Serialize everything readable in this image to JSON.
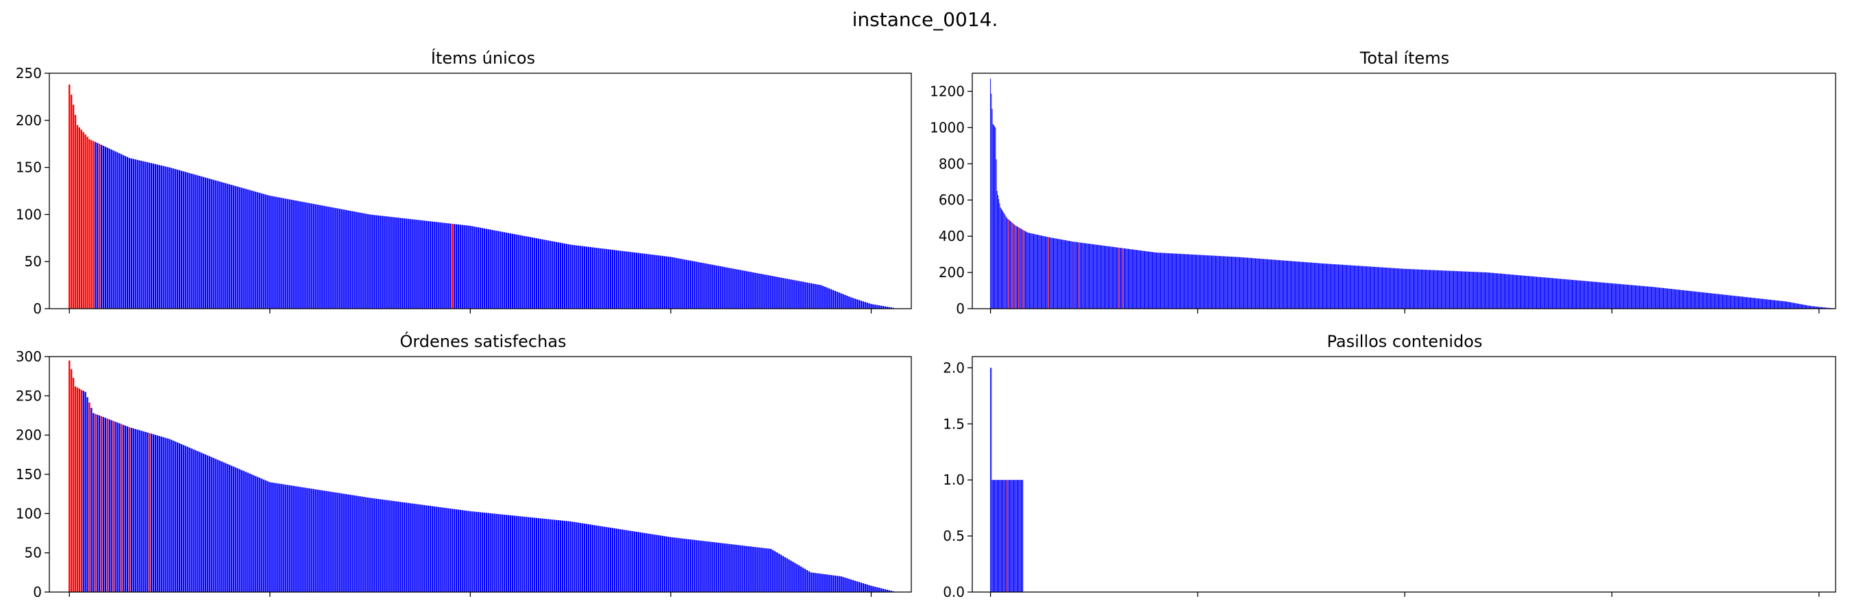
{
  "figure": {
    "suptitle": "instance_0014."
  },
  "chart_data": [
    {
      "type": "bar",
      "title": "Ítems únicos",
      "ylim": [
        0,
        250
      ],
      "yticks": [
        0,
        50,
        100,
        150,
        200,
        250
      ],
      "xlim": [
        -10,
        420
      ],
      "xticks": [
        0,
        100,
        200,
        300,
        400
      ],
      "n": 412,
      "profile": [
        [
          0,
          238
        ],
        [
          4,
          195
        ],
        [
          10,
          180
        ],
        [
          15,
          175
        ],
        [
          20,
          170
        ],
        [
          25,
          165
        ],
        [
          30,
          160
        ],
        [
          50,
          150
        ],
        [
          100,
          120
        ],
        [
          150,
          100
        ],
        [
          200,
          88
        ],
        [
          250,
          68
        ],
        [
          300,
          55
        ],
        [
          350,
          35
        ],
        [
          375,
          25
        ],
        [
          390,
          12
        ],
        [
          400,
          5
        ],
        [
          411,
          1
        ]
      ],
      "highlight": [
        0,
        1,
        2,
        3,
        4,
        5,
        6,
        7,
        8,
        9,
        10,
        11,
        12,
        15,
        191
      ],
      "colors": {
        "default": "#0000ff",
        "highlight": "#ff0000"
      }
    },
    {
      "type": "bar",
      "title": "Total ítems",
      "ylim": [
        0,
        1300
      ],
      "yticks": [
        0,
        200,
        400,
        600,
        800,
        1000,
        1200
      ],
      "xlim": [
        -22,
        1020
      ],
      "xticks": [
        0,
        250,
        500,
        750,
        1000
      ],
      "n": 1020,
      "profile": [
        [
          0,
          1270
        ],
        [
          3,
          1020
        ],
        [
          6,
          1000
        ],
        [
          8,
          650
        ],
        [
          12,
          560
        ],
        [
          20,
          500
        ],
        [
          30,
          460
        ],
        [
          45,
          420
        ],
        [
          70,
          395
        ],
        [
          100,
          370
        ],
        [
          150,
          340
        ],
        [
          200,
          310
        ],
        [
          300,
          285
        ],
        [
          400,
          250
        ],
        [
          500,
          220
        ],
        [
          600,
          200
        ],
        [
          700,
          160
        ],
        [
          800,
          120
        ],
        [
          900,
          70
        ],
        [
          960,
          40
        ],
        [
          990,
          15
        ],
        [
          1010,
          5
        ],
        [
          1019,
          2
        ]
      ],
      "highlight": [
        18,
        22,
        26,
        28,
        30,
        34,
        38,
        40,
        70,
        100,
        107,
        155,
        160
      ],
      "colors": {
        "default": "#0000ff",
        "highlight": "#ff0000"
      }
    },
    {
      "type": "bar",
      "title": "Órdenes satisfechas",
      "ylim": [
        0,
        300
      ],
      "yticks": [
        0,
        50,
        100,
        150,
        200,
        250,
        300
      ],
      "xlim": [
        -10,
        420
      ],
      "xticks": [
        0,
        100,
        200,
        300,
        400
      ],
      "n": 412,
      "profile": [
        [
          0,
          295
        ],
        [
          3,
          262
        ],
        [
          8,
          255
        ],
        [
          12,
          228
        ],
        [
          20,
          220
        ],
        [
          30,
          210
        ],
        [
          50,
          195
        ],
        [
          100,
          140
        ],
        [
          150,
          120
        ],
        [
          200,
          103
        ],
        [
          250,
          90
        ],
        [
          300,
          70
        ],
        [
          350,
          55
        ],
        [
          370,
          25
        ],
        [
          385,
          20
        ],
        [
          400,
          8
        ],
        [
          411,
          1
        ]
      ],
      "highlight": [
        0,
        1,
        2,
        3,
        4,
        5,
        6,
        10,
        13,
        16,
        19,
        22,
        26,
        30,
        40
      ],
      "colors": {
        "default": "#0000ff",
        "highlight": "#ff0000"
      }
    },
    {
      "type": "bar",
      "title": "Pasillos contenidos",
      "ylim": [
        0,
        2.1
      ],
      "yticks": [
        "0.0",
        "0.5",
        "1.0",
        "1.5",
        "2.0"
      ],
      "xlim": [
        -22,
        1020
      ],
      "xticks": [
        0,
        250,
        500,
        750,
        1000
      ],
      "n": 40,
      "profile": [
        [
          0,
          2.0
        ],
        [
          1,
          2.0
        ],
        [
          2,
          1.0
        ],
        [
          39,
          1.0
        ]
      ],
      "highlight": [
        20
      ],
      "colors": {
        "default": "#0000ff",
        "highlight": "#ff0000"
      }
    }
  ]
}
